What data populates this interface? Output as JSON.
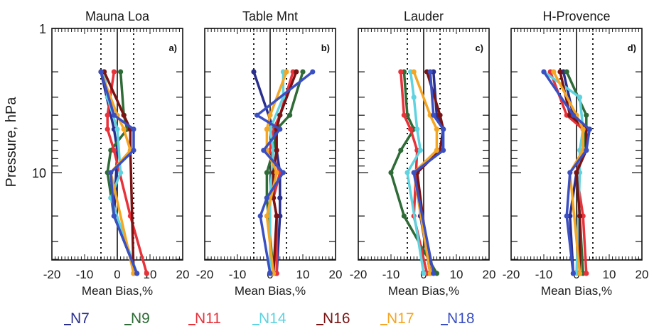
{
  "figure": {
    "ylabel": "Pressure, hPa",
    "colors": {
      "N7": "#2a2f8e",
      "N9": "#2e6b36",
      "N11": "#e8323a",
      "N14": "#5fd3e0",
      "N16": "#7a1414",
      "N17": "#f5a623",
      "N18": "#3a4fc1"
    },
    "legend": [
      "N7",
      "N9",
      "N11",
      "N14",
      "N16",
      "N17",
      "N18"
    ]
  },
  "chart_data": [
    {
      "type": "line",
      "title": "Mauna Loa",
      "panel_label": "a)",
      "xlabel": "Mean Bias,%",
      "xlim": [
        -20,
        20
      ],
      "ylim": [
        1,
        60
      ],
      "y_scale": "log",
      "y_reversed": true,
      "xticks": [
        "-20",
        "-10",
        "0",
        "10",
        "20"
      ],
      "yticks": [
        "1",
        "10"
      ],
      "vlines": [
        -5,
        0,
        5
      ],
      "pressure_levels": [
        2,
        3,
        4,
        5,
        7,
        10,
        15,
        20,
        30,
        50
      ],
      "series": [
        {
          "name": "N7",
          "values": [
            -5,
            null,
            null,
            -1,
            0,
            null,
            null,
            -1,
            null,
            6
          ]
        },
        {
          "name": "N9",
          "values": [
            1,
            null,
            2,
            3,
            -2,
            -3,
            null,
            -1,
            null,
            6
          ]
        },
        {
          "name": "N11",
          "values": [
            -1,
            null,
            -3,
            -3,
            -1,
            null,
            null,
            4,
            null,
            9
          ]
        },
        {
          "name": "N14",
          "values": [
            -4,
            -3,
            null,
            0,
            null,
            1,
            -2,
            null,
            null,
            6
          ]
        },
        {
          "name": "N16",
          "values": [
            -4,
            null,
            2,
            4,
            4,
            null,
            null,
            null,
            null,
            5
          ]
        },
        {
          "name": "N17",
          "values": [
            -5,
            null,
            0,
            2,
            4,
            -2,
            null,
            null,
            null,
            5
          ]
        },
        {
          "name": "N18",
          "values": [
            -5,
            null,
            -1,
            5,
            5,
            -2,
            null,
            -1,
            null,
            6
          ]
        }
      ]
    },
    {
      "type": "line",
      "title": "Table Mnt",
      "panel_label": "b)",
      "xlabel": "Mean Bias,%",
      "xlim": [
        -20,
        20
      ],
      "ylim": [
        1,
        60
      ],
      "y_scale": "log",
      "y_reversed": true,
      "xticks": [
        "-20",
        "-10",
        "0",
        "10",
        "20"
      ],
      "yticks": [
        "1",
        "10"
      ],
      "vlines": [
        -5,
        0,
        5
      ],
      "pressure_levels": [
        2,
        3,
        4,
        5,
        7,
        10,
        15,
        20,
        30,
        50
      ],
      "series": [
        {
          "name": "N7",
          "values": [
            -5,
            null,
            null,
            1,
            2,
            3,
            3,
            3,
            null,
            2
          ]
        },
        {
          "name": "N9",
          "values": [
            10,
            null,
            6,
            2,
            1,
            -1,
            -1,
            null,
            null,
            1
          ]
        },
        {
          "name": "N11",
          "values": [
            7,
            null,
            3,
            1,
            0,
            3,
            1,
            2,
            null,
            2
          ]
        },
        {
          "name": "N14",
          "values": [
            4,
            4,
            null,
            0,
            1,
            null,
            0,
            null,
            null,
            0
          ]
        },
        {
          "name": "N16",
          "values": [
            8,
            null,
            3,
            2,
            2,
            1,
            1,
            2,
            null,
            1
          ]
        },
        {
          "name": "N17",
          "values": [
            5,
            null,
            0,
            -1,
            -1,
            2,
            null,
            -1,
            null,
            1
          ]
        },
        {
          "name": "N18",
          "values": [
            13,
            null,
            -4,
            3,
            -2,
            4,
            -1,
            -3,
            null,
            0
          ]
        }
      ]
    },
    {
      "type": "line",
      "title": "Lauder",
      "panel_label": "c)",
      "xlabel": "Mean Bias,%",
      "xlim": [
        -20,
        20
      ],
      "ylim": [
        1,
        60
      ],
      "y_scale": "log",
      "y_reversed": true,
      "xticks": [
        "-20",
        "-10",
        "0",
        "10",
        "20"
      ],
      "yticks": [
        "1",
        "10"
      ],
      "vlines": [
        -5,
        0,
        5
      ],
      "pressure_levels": [
        2,
        3,
        4,
        5,
        7,
        10,
        15,
        20,
        30,
        50
      ],
      "series": [
        {
          "name": "N7",
          "values": [
            3,
            null,
            4,
            6,
            5,
            -2,
            null,
            -1,
            null,
            2
          ]
        },
        {
          "name": "N9",
          "values": [
            -6,
            null,
            -5,
            -3,
            -7,
            -10,
            null,
            -6,
            null,
            4
          ]
        },
        {
          "name": "N11",
          "values": [
            -7,
            null,
            -6,
            -4,
            -2,
            null,
            null,
            -3,
            null,
            1
          ]
        },
        {
          "name": "N14",
          "values": [
            -4,
            -3,
            null,
            -2,
            -1,
            -5,
            null,
            null,
            null,
            0
          ]
        },
        {
          "name": "N16",
          "values": [
            1,
            null,
            5,
            6,
            5,
            -2,
            null,
            null,
            null,
            2
          ]
        },
        {
          "name": "N17",
          "values": [
            -3,
            null,
            2,
            4,
            4,
            -3,
            null,
            null,
            null,
            2
          ]
        },
        {
          "name": "N18",
          "values": [
            2,
            null,
            3,
            6,
            6,
            -3,
            null,
            null,
            null,
            3
          ]
        }
      ]
    },
    {
      "type": "line",
      "title": "H-Provence",
      "panel_label": "d)",
      "xlabel": "Mean Bias,%",
      "xlim": [
        -20,
        20
      ],
      "ylim": [
        1,
        60
      ],
      "y_scale": "log",
      "y_reversed": true,
      "xticks": [
        "-20",
        "-10",
        "0",
        "10",
        "20"
      ],
      "yticks": [
        "1",
        "10"
      ],
      "vlines": [
        -5,
        0,
        5
      ],
      "pressure_levels": [
        2,
        3,
        4,
        5,
        7,
        10,
        15,
        20,
        30,
        50
      ],
      "series": [
        {
          "name": "N7",
          "values": [
            -4,
            null,
            -1,
            3,
            2,
            0,
            null,
            -2,
            null,
            -1
          ]
        },
        {
          "name": "N9",
          "values": [
            -3,
            null,
            3,
            3,
            2,
            0,
            null,
            1,
            null,
            2
          ]
        },
        {
          "name": "N11",
          "values": [
            -8,
            null,
            -3,
            2,
            2,
            0,
            null,
            2,
            null,
            3
          ]
        },
        {
          "name": "N14",
          "values": [
            -10,
            1,
            null,
            2,
            1,
            1,
            null,
            null,
            null,
            0
          ]
        },
        {
          "name": "N16",
          "values": [
            -5,
            null,
            -2,
            3,
            3,
            0,
            null,
            1,
            null,
            1
          ]
        },
        {
          "name": "N17",
          "values": [
            -7,
            null,
            0,
            2,
            2,
            -2,
            null,
            null,
            null,
            1
          ]
        },
        {
          "name": "N18",
          "values": [
            -10,
            null,
            -1,
            4,
            3,
            -2,
            null,
            -3,
            null,
            -1
          ]
        }
      ]
    }
  ]
}
